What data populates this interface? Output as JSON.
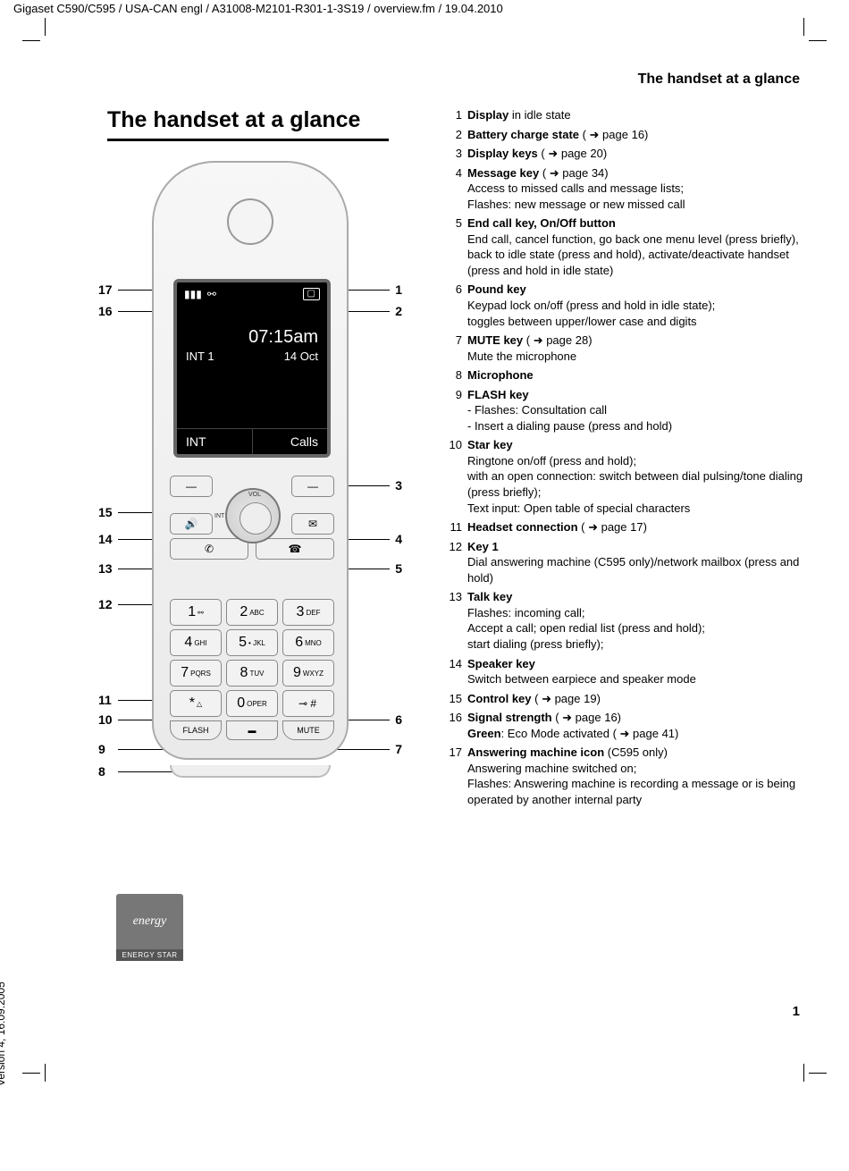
{
  "meta": {
    "header": "Gigaset C590/C595 / USA-CAN engl / A31008-M2101-R301-1-3S19 / overview.fm / 19.04.2010",
    "section_header": "The handset at a glance",
    "title": "The handset at a glance",
    "version": "Version 4, 16.09.2005",
    "page": "1"
  },
  "screen": {
    "signal_glyph": "▮▮▮",
    "voicemail_glyph": "⚯",
    "battery_glyph": "▢",
    "time": "07:15am",
    "handset_label": "INT 1",
    "date": "14 Oct",
    "softkey_left": "INT",
    "softkey_right": "Calls"
  },
  "midkeys": {
    "speaker_glyph": "🔊",
    "message_glyph": "✉",
    "talk_glyph": "✆",
    "end_glyph": "☎",
    "vol_label": "VOL",
    "int_label": "INT"
  },
  "keypad": {
    "k1": {
      "d": "1",
      "s": "⚯"
    },
    "k2": {
      "d": "2",
      "s": "ABC"
    },
    "k3": {
      "d": "3",
      "s": "DEF"
    },
    "k4": {
      "d": "4",
      "s": "GHI"
    },
    "k5": {
      "d": "5",
      "s": "• JKL"
    },
    "k6": {
      "d": "6",
      "s": "MNO"
    },
    "k7": {
      "d": "7",
      "s": "PQRS"
    },
    "k8": {
      "d": "8",
      "s": "TUV"
    },
    "k9": {
      "d": "9",
      "s": "WXYZ"
    },
    "kstar": {
      "d": "*",
      "s": "△"
    },
    "k0": {
      "d": "0",
      "s": "OPER"
    },
    "kpound": {
      "d": "⊸ #",
      "s": ""
    },
    "flash": "FLASH",
    "mute": "MUTE"
  },
  "callouts": {
    "n1": "1",
    "n2": "2",
    "n3": "3",
    "n4": "4",
    "n5": "5",
    "n6": "6",
    "n7": "7",
    "n8": "8",
    "n9": "9",
    "n10": "10",
    "n11": "11",
    "n12": "12",
    "n13": "13",
    "n14": "14",
    "n15": "15",
    "n16": "16",
    "n17": "17"
  },
  "legend": [
    {
      "n": "1",
      "t": "Display",
      "rest": " in idle state"
    },
    {
      "n": "2",
      "t": "Battery charge state",
      "rest": " ( ➜  page 16)"
    },
    {
      "n": "3",
      "t": "Display keys",
      "rest": " ( ➜  page 20)"
    },
    {
      "n": "4",
      "t": "Message key",
      "rest": " ( ➜  page 34)",
      "desc": "Access to missed calls and message lists;\nFlashes: new message or new missed call"
    },
    {
      "n": "5",
      "t": "End call key, On/Off button",
      "rest": "",
      "desc": "End call, cancel function, go back one menu level (press briefly), back to idle state (press and hold), activate/deactivate handset (press and hold in idle state)"
    },
    {
      "n": "6",
      "t": "Pound key",
      "rest": "",
      "desc": "Keypad lock on/off (press and hold in idle state);\ntoggles between upper/lower case and digits"
    },
    {
      "n": "7",
      "t": "MUTE key",
      "rest": " ( ➜  page 28)",
      "desc": "Mute the microphone"
    },
    {
      "n": "8",
      "t": "Microphone",
      "rest": ""
    },
    {
      "n": "9",
      "t": "FLASH key",
      "rest": "",
      "desc": "- Flashes: Consultation call\n- Insert a dialing pause (press and hold)"
    },
    {
      "n": "10",
      "t": "Star key",
      "rest": "",
      "desc": "Ringtone on/off (press and hold);\nwith an open connection: switch between dial pulsing/tone dialing (press briefly);\nText input: Open table of special characters"
    },
    {
      "n": "11",
      "t": "Headset connection",
      "rest": " ( ➜  page 17)"
    },
    {
      "n": "12",
      "t": "Key 1",
      "rest": "",
      "desc": "Dial answering machine (C595 only)/network mailbox (press and hold)"
    },
    {
      "n": "13",
      "t": "Talk key",
      "rest": "",
      "desc": "Flashes: incoming call;\nAccept a call; open redial list (press and hold);\nstart dialing (press briefly);"
    },
    {
      "n": "14",
      "t": "Speaker key",
      "rest": "",
      "desc": "Switch between earpiece and speaker mode"
    },
    {
      "n": "15",
      "t": "Control key",
      "rest": " ( ➜  page 19)"
    },
    {
      "n": "16",
      "t": "Signal strength",
      "rest": " ( ➜  page 16)",
      "desc_html": "<b>Green</b>: Eco Mode activated ( ➜  page 41)"
    },
    {
      "n": "17",
      "t": "Answering machine icon",
      "rest": " (C595 only)",
      "desc": "Answering machine switched on;\nFlashes: Answering machine is recording a message or is being operated by another internal party"
    }
  ],
  "energy_star": {
    "top": "energy",
    "bottom": "ENERGY STAR"
  }
}
